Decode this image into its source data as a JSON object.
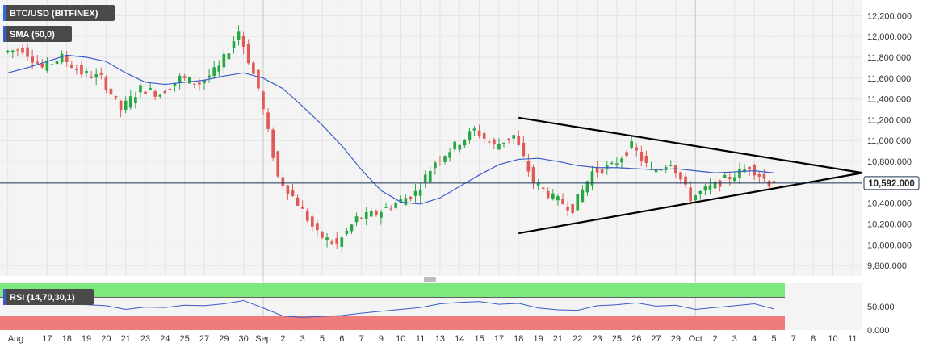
{
  "chart_data": [
    {
      "type": "candlestick",
      "title": "BTC/USD (BITFINEX)",
      "indicator_label": "SMA (50,0)",
      "colors": {
        "up": "#27a644",
        "down": "#e05a55",
        "sma": "#3a5cc7",
        "trendline": "#000000",
        "grid": "#e3e3e3",
        "background": "#f4f4f4",
        "current_line": "#1d3557"
      },
      "ylim": [
        9700,
        12350
      ],
      "yticks": [
        "9,800.000",
        "10,000.000",
        "10,200.000",
        "10,400.000",
        "10,600.000",
        "10,800.000",
        "11,000.000",
        "11,200.000",
        "11,400.000",
        "11,600.000",
        "11,800.000",
        "12,000.000",
        "12,200.000"
      ],
      "ytick_values": [
        9800,
        10000,
        10200,
        10400,
        10600,
        10800,
        11000,
        11200,
        11400,
        11600,
        11800,
        12000,
        12200
      ],
      "current_price": 10592,
      "current_price_label": "10,592.000",
      "xticks": [
        "Aug",
        "17",
        "18",
        "19",
        "20",
        "21",
        "23",
        "24",
        "25",
        "27",
        "29",
        "30",
        "Sep",
        "2",
        "3",
        "5",
        "6",
        "7",
        "9",
        "10",
        "11",
        "13",
        "14",
        "15",
        "17",
        "18",
        "19",
        "21",
        "22",
        "23",
        "25",
        "26",
        "27",
        "29",
        "Oct",
        "2",
        "3",
        "4",
        "5",
        "7",
        "8",
        "10",
        "11"
      ],
      "xtick_pos": [
        0,
        2,
        3,
        4,
        5,
        6,
        7,
        8,
        9,
        10,
        11,
        12,
        13,
        14,
        15,
        16,
        17,
        18,
        19,
        20,
        21,
        22,
        23,
        24,
        25,
        26,
        27,
        28,
        29,
        30,
        31,
        32,
        33,
        34,
        35,
        36,
        37,
        38,
        39,
        40,
        41,
        42,
        43
      ],
      "x_range": [
        -0.4,
        43.5
      ],
      "month_dividers": [
        13,
        35
      ],
      "daily_close": [
        11850,
        11880,
        11700,
        11800,
        11650,
        11600,
        11300,
        11500,
        11450,
        11600,
        11550,
        11700,
        12050,
        11500,
        10650,
        10400,
        10100,
        10000,
        10250,
        10300,
        10400,
        10500,
        10800,
        10950,
        11100,
        10950,
        11050,
        10600,
        10450,
        10350,
        10700,
        10750,
        10950,
        10700,
        10800,
        10450,
        10550,
        10650,
        10750,
        10592
      ],
      "sma_values": [
        11650,
        11700,
        11760,
        11820,
        11800,
        11760,
        11650,
        11560,
        11540,
        11560,
        11580,
        11620,
        11650,
        11600,
        11500,
        11330,
        11150,
        10950,
        10720,
        10520,
        10410,
        10390,
        10450,
        10560,
        10670,
        10770,
        10820,
        10830,
        10800,
        10760,
        10740,
        10740,
        10730,
        10720,
        10730,
        10710,
        10690,
        10700,
        10710,
        10690
      ],
      "trendlines": [
        {
          "from": [
            26,
            11220
          ],
          "to": [
            43.5,
            10690
          ]
        },
        {
          "from": [
            26,
            10110
          ],
          "to": [
            43.5,
            10690
          ]
        }
      ]
    },
    {
      "type": "line",
      "indicator_label": "RSI (14,70,30,1)",
      "ylim": [
        0,
        100
      ],
      "yticks": [
        "0.000",
        "50.000"
      ],
      "ytick_values": [
        0,
        50
      ],
      "bands": {
        "overbought": 70,
        "oversold": 30,
        "overbought_color": "#7de87b",
        "oversold_color": "#f07b7b"
      },
      "rsi_values": [
        62,
        60,
        57,
        55,
        54,
        52,
        44,
        49,
        48,
        53,
        52,
        56,
        63,
        47,
        30,
        27,
        29,
        31,
        36,
        40,
        44,
        48,
        56,
        59,
        61,
        55,
        57,
        47,
        43,
        42,
        52,
        54,
        58,
        51,
        53,
        44,
        48,
        52,
        56,
        45
      ]
    }
  ]
}
